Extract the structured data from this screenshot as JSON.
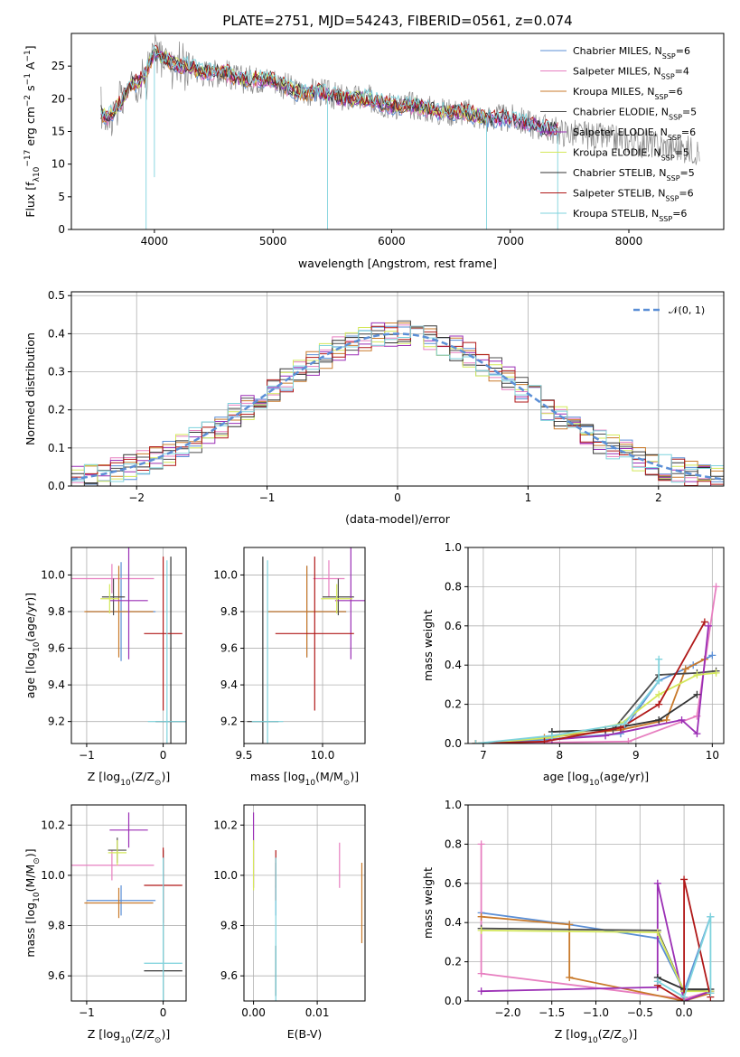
{
  "figure": {
    "title": "PLATE=2751, MJD=54243, FIBERID=0561, z=0.074"
  },
  "series": [
    {
      "name": "Chabrier MILES, N",
      "sub": "SSP",
      "suffix": "=6",
      "color": "#5b8fd6"
    },
    {
      "name": "Salpeter MILES, N",
      "sub": "SSP",
      "suffix": "=4",
      "color": "#e77fc0"
    },
    {
      "name": "Kroupa MILES, N",
      "sub": "SSP",
      "suffix": "=6",
      "color": "#c97a2b"
    },
    {
      "name": "Chabrier ELODIE, N",
      "sub": "SSP",
      "suffix": "=5",
      "color": "#4d4d4d"
    },
    {
      "name": "Salpeter ELODIE, N",
      "sub": "SSP",
      "suffix": "=6",
      "color": "#9b2fb5"
    },
    {
      "name": "Kroupa ELODIE, N",
      "sub": "SSP",
      "suffix": "=5",
      "color": "#d4e85a"
    },
    {
      "name": "Chabrier STELIB, N",
      "sub": "SSP",
      "suffix": "=5",
      "color": "#333333"
    },
    {
      "name": "Salpeter STELIB, N",
      "sub": "SSP",
      "suffix": "=6",
      "color": "#b01818"
    },
    {
      "name": "Kroupa STELIB, N",
      "sub": "SSP",
      "suffix": "=6",
      "color": "#7fd3dd"
    }
  ],
  "chart_data": [
    {
      "id": "spectrum",
      "type": "line",
      "title": "PLATE=2751, MJD=54243, FIBERID=0561, z=0.074",
      "xlabel": "wavelength [Angstrom, rest frame]",
      "ylabel": "Flux [f",
      "ylabel_parts": [
        "Flux [f",
        "λ",
        "10",
        "−17",
        " erg cm",
        "−2",
        " s",
        "−1",
        " A",
        "−1",
        "]"
      ],
      "xlim": [
        3300,
        8800
      ],
      "ylim": [
        0,
        30
      ],
      "xticks": [
        4000,
        5000,
        6000,
        7000,
        8000
      ],
      "yticks": [
        0,
        5,
        10,
        15,
        20,
        25
      ],
      "grid": false,
      "legend": "top-right",
      "x": [
        3550,
        3600,
        3700,
        3800,
        3900,
        4000,
        4100,
        4200,
        4300,
        4400,
        4500,
        4600,
        4700,
        4800,
        4900,
        5000,
        5200,
        5400,
        5600,
        5800,
        6000,
        6200,
        6400,
        6600,
        6800,
        7000,
        7200,
        7400,
        7600,
        7800,
        8000,
        8200,
        8400,
        8600
      ],
      "y": [
        18,
        17,
        19,
        22,
        23,
        27,
        26,
        25,
        25,
        24,
        24,
        24,
        23,
        23,
        23,
        23,
        21,
        21,
        20,
        20,
        19,
        19,
        18,
        18,
        17,
        17,
        16,
        15,
        14.5,
        14,
        13.5,
        13,
        12.5,
        12
      ]
    },
    {
      "id": "residuals",
      "type": "line",
      "xlabel": "(data-model)/error",
      "ylabel": "Normed distribution",
      "xlim": [
        -2.5,
        2.5
      ],
      "ylim": [
        0,
        0.51
      ],
      "xticks": [
        -2,
        -1,
        0,
        1,
        2
      ],
      "yticks": [
        0.0,
        0.1,
        0.2,
        0.3,
        0.4,
        0.5
      ],
      "grid": true,
      "legend": "top-right",
      "legend_label": "𝒩(0, 1)",
      "curve": {
        "mean": 0,
        "sigma": 1,
        "peak": 0.4
      }
    },
    {
      "id": "age-vs-z",
      "type": "scatter",
      "xlabel": "Z [log",
      "xlabel_parts": [
        "Z [log",
        "10",
        "(Z/Z",
        "⊙",
        ")]"
      ],
      "ylabel_parts": [
        "age  [log",
        "10",
        "(age/yr)]"
      ],
      "xlim": [
        -1.2,
        0.3
      ],
      "ylim": [
        9.08,
        10.15
      ],
      "xticks": [
        -1,
        0
      ],
      "yticks": [
        9.2,
        9.4,
        9.6,
        9.8,
        10.0
      ],
      "grid": true,
      "points": [
        {
          "s": 0,
          "x": -0.55,
          "xerr": 0.45,
          "y": 9.8,
          "yerr": 0.27
        },
        {
          "s": 1,
          "x": -0.67,
          "xerr": 0.55,
          "y": 9.98,
          "yerr": 0.08
        },
        {
          "s": 2,
          "x": -0.58,
          "xerr": 0.45,
          "y": 9.8,
          "yerr": 0.25
        },
        {
          "s": 3,
          "x": -0.65,
          "xerr": 0.15,
          "y": 9.88,
          "yerr": 0.1
        },
        {
          "s": 4,
          "x": -0.45,
          "xerr": 0.25,
          "y": 9.86,
          "yerr": 0.32
        },
        {
          "s": 5,
          "x": -0.7,
          "xerr": 0.12,
          "y": 9.87,
          "yerr": 0.08
        },
        {
          "s": 6,
          "x": 0.1,
          "xerr": 0.2,
          "y": 9.2,
          "yerr": 0.9
        },
        {
          "s": 7,
          "x": 0.0,
          "xerr": 0.25,
          "y": 9.68,
          "yerr": 0.42
        },
        {
          "s": 8,
          "x": 0.05,
          "xerr": 0.25,
          "y": 9.2,
          "yerr": 0.88
        }
      ]
    },
    {
      "id": "age-vs-mass",
      "type": "scatter",
      "xlabel_parts": [
        "mass [log",
        "10",
        "(M/M",
        "⊙",
        ")]"
      ],
      "xlim": [
        9.5,
        10.27
      ],
      "ylim": [
        9.08,
        10.15
      ],
      "xticks": [
        9.5,
        10.0
      ],
      "yticks": [
        9.2,
        9.4,
        9.6,
        9.8,
        10.0
      ],
      "grid": true,
      "points": [
        {
          "s": 0,
          "x": 9.9,
          "xerr": 0.25,
          "y": 9.8,
          "yerr": 0.25
        },
        {
          "s": 1,
          "x": 10.04,
          "xerr": 0.1,
          "y": 9.98,
          "yerr": 0.1
        },
        {
          "s": 2,
          "x": 9.9,
          "xerr": 0.25,
          "y": 9.8,
          "yerr": 0.25
        },
        {
          "s": 3,
          "x": 10.1,
          "xerr": 0.1,
          "y": 9.88,
          "yerr": 0.1
        },
        {
          "s": 4,
          "x": 10.18,
          "xerr": 0.1,
          "y": 9.86,
          "yerr": 0.32
        },
        {
          "s": 5,
          "x": 10.09,
          "xerr": 0.1,
          "y": 9.87,
          "yerr": 0.08
        },
        {
          "s": 6,
          "x": 9.62,
          "xerr": 0.1,
          "y": 9.2,
          "yerr": 0.9
        },
        {
          "s": 7,
          "x": 9.95,
          "xerr": 0.25,
          "y": 9.68,
          "yerr": 0.42
        },
        {
          "s": 8,
          "x": 9.65,
          "xerr": 0.1,
          "y": 9.2,
          "yerr": 0.88
        }
      ]
    },
    {
      "id": "weight-vs-age",
      "type": "line",
      "xlabel_parts": [
        "age  [log",
        "10",
        "(age/yr)]"
      ],
      "ylabel": "mass weight",
      "xlim": [
        6.8,
        10.15
      ],
      "ylim": [
        0,
        1.0
      ],
      "xticks": [
        7,
        8,
        9,
        10
      ],
      "yticks": [
        0.0,
        0.2,
        0.4,
        0.6,
        0.8,
        1.0
      ],
      "grid": true,
      "lines": [
        {
          "s": 0,
          "x": [
            6.9,
            7.8,
            8.8,
            9.3,
            9.75,
            10.0
          ],
          "y": [
            0.0,
            0.02,
            0.05,
            0.32,
            0.4,
            0.45
          ]
        },
        {
          "s": 1,
          "x": [
            6.9,
            8.9,
            9.8,
            10.05
          ],
          "y": [
            0.0,
            0.01,
            0.14,
            0.8
          ]
        },
        {
          "s": 2,
          "x": [
            6.9,
            7.8,
            8.8,
            9.4,
            9.65,
            9.9
          ],
          "y": [
            0.0,
            0.03,
            0.07,
            0.12,
            0.38,
            0.43
          ]
        },
        {
          "s": 3,
          "x": [
            7.9,
            8.7,
            9.3,
            9.8,
            10.05
          ],
          "y": [
            0.06,
            0.07,
            0.35,
            0.36,
            0.37
          ]
        },
        {
          "s": 4,
          "x": [
            7.9,
            8.6,
            9.6,
            9.8,
            9.95
          ],
          "y": [
            0.02,
            0.04,
            0.12,
            0.05,
            0.6
          ]
        },
        {
          "s": 5,
          "x": [
            6.9,
            7.9,
            8.8,
            9.3,
            9.8,
            10.05
          ],
          "y": [
            0.0,
            0.03,
            0.1,
            0.25,
            0.35,
            0.36
          ]
        },
        {
          "s": 6,
          "x": [
            7.9,
            8.6,
            9.3,
            9.8
          ],
          "y": [
            0.06,
            0.07,
            0.12,
            0.25
          ]
        },
        {
          "s": 7,
          "x": [
            6.9,
            7.8,
            8.8,
            9.3,
            9.9
          ],
          "y": [
            0.0,
            0.01,
            0.08,
            0.2,
            0.62
          ]
        },
        {
          "s": 8,
          "x": [
            6.9,
            7.9,
            8.85,
            9.3,
            9.3
          ],
          "y": [
            0.0,
            0.04,
            0.1,
            0.32,
            0.43
          ]
        }
      ]
    },
    {
      "id": "mass-vs-z",
      "type": "scatter",
      "xlabel_parts": [
        "Z [log",
        "10",
        "(Z/Z",
        "⊙",
        ")]"
      ],
      "ylabel_parts": [
        "mass [log",
        "10",
        "(M/M",
        "⊙",
        ")]"
      ],
      "xlim": [
        -1.2,
        0.3
      ],
      "ylim": [
        9.5,
        10.28
      ],
      "xticks": [
        -1,
        0
      ],
      "yticks": [
        9.6,
        9.8,
        10.0,
        10.2
      ],
      "grid": true,
      "points": [
        {
          "s": 0,
          "x": -0.55,
          "xerr": 0.45,
          "y": 9.9,
          "yerr": 0.06
        },
        {
          "s": 1,
          "x": -0.67,
          "xerr": 0.55,
          "y": 10.04,
          "yerr": 0.06
        },
        {
          "s": 2,
          "x": -0.58,
          "xerr": 0.45,
          "y": 9.89,
          "yerr": 0.06
        },
        {
          "s": 3,
          "x": -0.6,
          "xerr": 0.12,
          "y": 10.1,
          "yerr": 0.05
        },
        {
          "s": 4,
          "x": -0.45,
          "xerr": 0.25,
          "y": 10.18,
          "yerr": 0.07
        },
        {
          "s": 5,
          "x": -0.6,
          "xerr": 0.12,
          "y": 10.09,
          "yerr": 0.05
        },
        {
          "s": 6,
          "x": 0.0,
          "xerr": 0.25,
          "y": 9.62,
          "yerr": 0.48
        },
        {
          "s": 7,
          "x": 0.0,
          "xerr": 0.25,
          "y": 9.96,
          "yerr": 0.15
        },
        {
          "s": 8,
          "x": 0.0,
          "xerr": 0.25,
          "y": 9.65,
          "yerr": 0.42
        }
      ]
    },
    {
      "id": "mass-vs-ebv",
      "type": "scatter",
      "xlabel": "E(B-V)",
      "xlim": [
        -0.0015,
        0.0175
      ],
      "ylim": [
        9.5,
        10.28
      ],
      "xticks": [
        0.0,
        0.01
      ],
      "xtick_labels": [
        "0.00",
        "0.01"
      ],
      "yticks": [
        9.6,
        9.8,
        10.0,
        10.2
      ],
      "grid": true,
      "points": [
        {
          "s": 0,
          "x": 0.0035,
          "y": 9.9,
          "yerr": 0.06
        },
        {
          "s": 1,
          "x": 0.0135,
          "y": 10.04,
          "yerr": 0.09
        },
        {
          "s": 2,
          "x": 0.017,
          "y": 9.89,
          "yerr": 0.16
        },
        {
          "s": 3,
          "x": 0.0035,
          "y": 10.0,
          "yerr": 0.05
        },
        {
          "s": 4,
          "x": 0.0,
          "y": 10.1,
          "yerr": 0.15
        },
        {
          "s": 5,
          "x": 0.0,
          "y": 10.04,
          "yerr": 0.1
        },
        {
          "s": 6,
          "x": 0.0035,
          "y": 9.62,
          "yerr": 0.1
        },
        {
          "s": 7,
          "x": 0.0035,
          "y": 10.0,
          "yerr": 0.1
        },
        {
          "s": 8,
          "x": 0.0035,
          "y": 9.65,
          "yerr": 0.42
        }
      ]
    },
    {
      "id": "weight-vs-z",
      "type": "line",
      "xlabel_parts": [
        "Z [log",
        "10",
        "(Z/Z",
        "⊙",
        ")]"
      ],
      "ylabel": "mass weight",
      "xlim": [
        -2.45,
        0.45
      ],
      "ylim": [
        0,
        1.0
      ],
      "xticks": [
        -2.0,
        -1.5,
        -1.0,
        -0.5,
        0.0
      ],
      "xtick_labels": [
        "−2.0",
        "−1.5",
        "−1.0",
        "−0.5",
        "0.0"
      ],
      "yticks": [
        0.0,
        0.2,
        0.4,
        0.6,
        0.8,
        1.0
      ],
      "grid": true,
      "lines": [
        {
          "s": 0,
          "x": [
            -2.3,
            -1.3,
            -0.3,
            0.0,
            0.3
          ],
          "y": [
            0.45,
            0.39,
            0.32,
            0.05,
            0.43
          ]
        },
        {
          "s": 1,
          "x": [
            -2.3,
            -2.3,
            0.0,
            0.3
          ],
          "y": [
            0.8,
            0.14,
            0.01,
            0.05
          ]
        },
        {
          "s": 2,
          "x": [
            -2.3,
            -1.3,
            -1.3,
            0.0,
            0.3
          ],
          "y": [
            0.43,
            0.39,
            0.12,
            0.0,
            0.04
          ]
        },
        {
          "s": 3,
          "x": [
            -2.3,
            -0.3,
            0.0,
            0.3
          ],
          "y": [
            0.37,
            0.36,
            0.05,
            0.06
          ]
        },
        {
          "s": 4,
          "x": [
            -2.3,
            -0.3,
            -0.3,
            0.0,
            0.3
          ],
          "y": [
            0.05,
            0.07,
            0.6,
            0.0,
            0.05
          ]
        },
        {
          "s": 5,
          "x": [
            -2.3,
            -0.3,
            0.0,
            0.3
          ],
          "y": [
            0.36,
            0.35,
            0.05,
            0.05
          ]
        },
        {
          "s": 6,
          "x": [
            -0.3,
            0.0,
            0.3
          ],
          "y": [
            0.12,
            0.06,
            0.06
          ]
        },
        {
          "s": 7,
          "x": [
            -0.3,
            0.0,
            0.0,
            0.3
          ],
          "y": [
            0.08,
            0.0,
            0.62,
            0.02
          ]
        },
        {
          "s": 8,
          "x": [
            -0.3,
            0.0,
            0.3,
            0.3
          ],
          "y": [
            0.1,
            0.02,
            0.43,
            0.04
          ]
        }
      ]
    }
  ]
}
